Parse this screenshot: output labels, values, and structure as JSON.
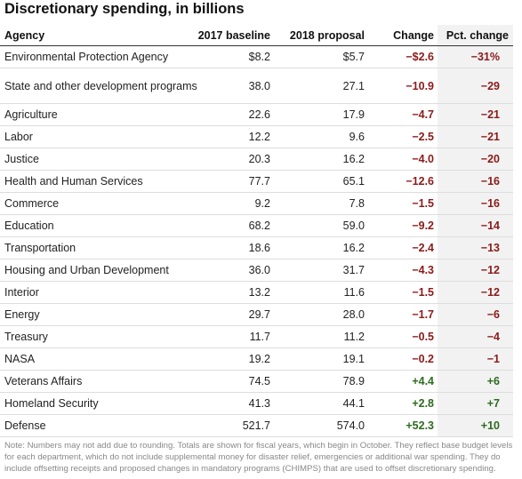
{
  "title": "Discretionary spending, in billions",
  "columns": {
    "agency": "Agency",
    "baseline_2017": "2017 baseline",
    "proposal_2018": "2018 proposal",
    "change": "Change",
    "pct_change": "Pct. change"
  },
  "rows": [
    {
      "agency": "Environmental Protection Agency",
      "baseline_2017": "$8.2",
      "proposal_2018": "$5.7",
      "change": "−$2.6",
      "pct_change": "−31%"
    },
    {
      "agency": "State and other development programs",
      "baseline_2017": "38.0",
      "proposal_2018": "27.1",
      "change": "−10.9",
      "pct_change": "−29"
    },
    {
      "agency": "Agriculture",
      "baseline_2017": "22.6",
      "proposal_2018": "17.9",
      "change": "−4.7",
      "pct_change": "−21"
    },
    {
      "agency": "Labor",
      "baseline_2017": "12.2",
      "proposal_2018": "9.6",
      "change": "−2.5",
      "pct_change": "−21"
    },
    {
      "agency": "Justice",
      "baseline_2017": "20.3",
      "proposal_2018": "16.2",
      "change": "−4.0",
      "pct_change": "−20"
    },
    {
      "agency": "Health and Human Services",
      "baseline_2017": "77.7",
      "proposal_2018": "65.1",
      "change": "−12.6",
      "pct_change": "−16"
    },
    {
      "agency": "Commerce",
      "baseline_2017": "9.2",
      "proposal_2018": "7.8",
      "change": "−1.5",
      "pct_change": "−16"
    },
    {
      "agency": "Education",
      "baseline_2017": "68.2",
      "proposal_2018": "59.0",
      "change": "−9.2",
      "pct_change": "−14"
    },
    {
      "agency": "Transportation",
      "baseline_2017": "18.6",
      "proposal_2018": "16.2",
      "change": "−2.4",
      "pct_change": "−13"
    },
    {
      "agency": "Housing and Urban Development",
      "baseline_2017": "36.0",
      "proposal_2018": "31.7",
      "change": "−4.3",
      "pct_change": "−12"
    },
    {
      "agency": "Interior",
      "baseline_2017": "13.2",
      "proposal_2018": "11.6",
      "change": "−1.5",
      "pct_change": "−12"
    },
    {
      "agency": "Energy",
      "baseline_2017": "29.7",
      "proposal_2018": "28.0",
      "change": "−1.7",
      "pct_change": "−6"
    },
    {
      "agency": "Treasury",
      "baseline_2017": "11.7",
      "proposal_2018": "11.2",
      "change": "−0.5",
      "pct_change": "−4"
    },
    {
      "agency": "NASA",
      "baseline_2017": "19.2",
      "proposal_2018": "19.1",
      "change": "−0.2",
      "pct_change": "−1"
    },
    {
      "agency": "Veterans Affairs",
      "baseline_2017": "74.5",
      "proposal_2018": "78.9",
      "change": "+4.4",
      "pct_change": "+6"
    },
    {
      "agency": "Homeland Security",
      "baseline_2017": "41.3",
      "proposal_2018": "44.1",
      "change": "+2.8",
      "pct_change": "+7"
    },
    {
      "agency": "Defense",
      "baseline_2017": "521.7",
      "proposal_2018": "574.0",
      "change": "+52.3",
      "pct_change": "+10"
    }
  ],
  "note": "Note: Numbers may not add due to rounding. Totals are shown for fiscal years, which begin in October. They reflect base budget levels for each department, which do not include supplemental money for disaster relief, emergencies or additional war spending. They do include offsetting receipts and proposed changes in mandatory programs (CHIMPS) that are used to offset discretionary spending.",
  "colors": {
    "negative": "#8b1a1a",
    "positive": "#2d6b1f",
    "pct_column_bg": "#f2f2f2",
    "note_text": "#888888"
  }
}
